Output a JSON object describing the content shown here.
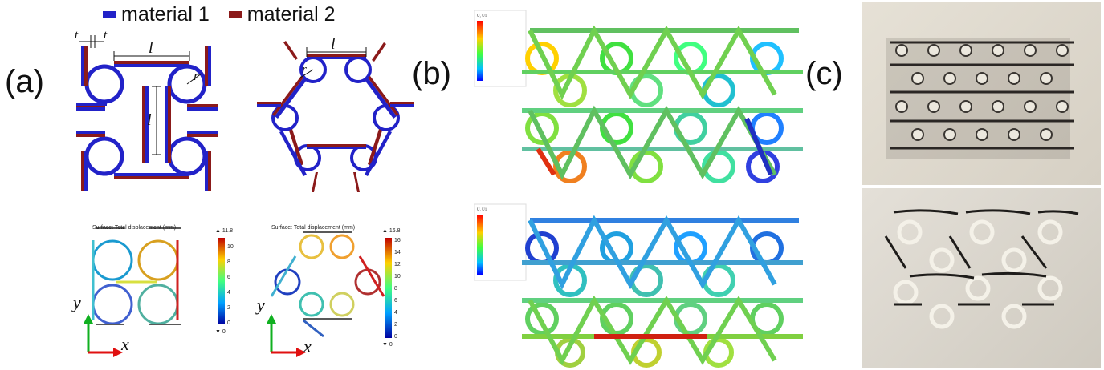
{
  "panels": {
    "a": "(a)",
    "b": "(b)",
    "c": "(c)"
  },
  "legend": {
    "material1": {
      "label": "material 1",
      "color": "#2222c8"
    },
    "material2": {
      "label": "material 2",
      "color": "#8b1a1a"
    }
  },
  "dims": {
    "t": "t",
    "l": "l",
    "r": "r"
  },
  "plots": {
    "left": {
      "title": "Surface: Total displacement (mm)",
      "max": "▲ 11.8",
      "min": "▼ 0",
      "ticks": [
        "10",
        "8",
        "6",
        "4",
        "2",
        "0"
      ]
    },
    "right": {
      "title": "Surface: Total displacement (mm)",
      "max": "▲ 16.8",
      "min": "▼ 0",
      "ticks": [
        "16",
        "14",
        "12",
        "10",
        "8",
        "6",
        "4",
        "2",
        "0"
      ]
    }
  },
  "axes": {
    "x": "x",
    "y": "y"
  },
  "fem_legend_title": "U, U1"
}
